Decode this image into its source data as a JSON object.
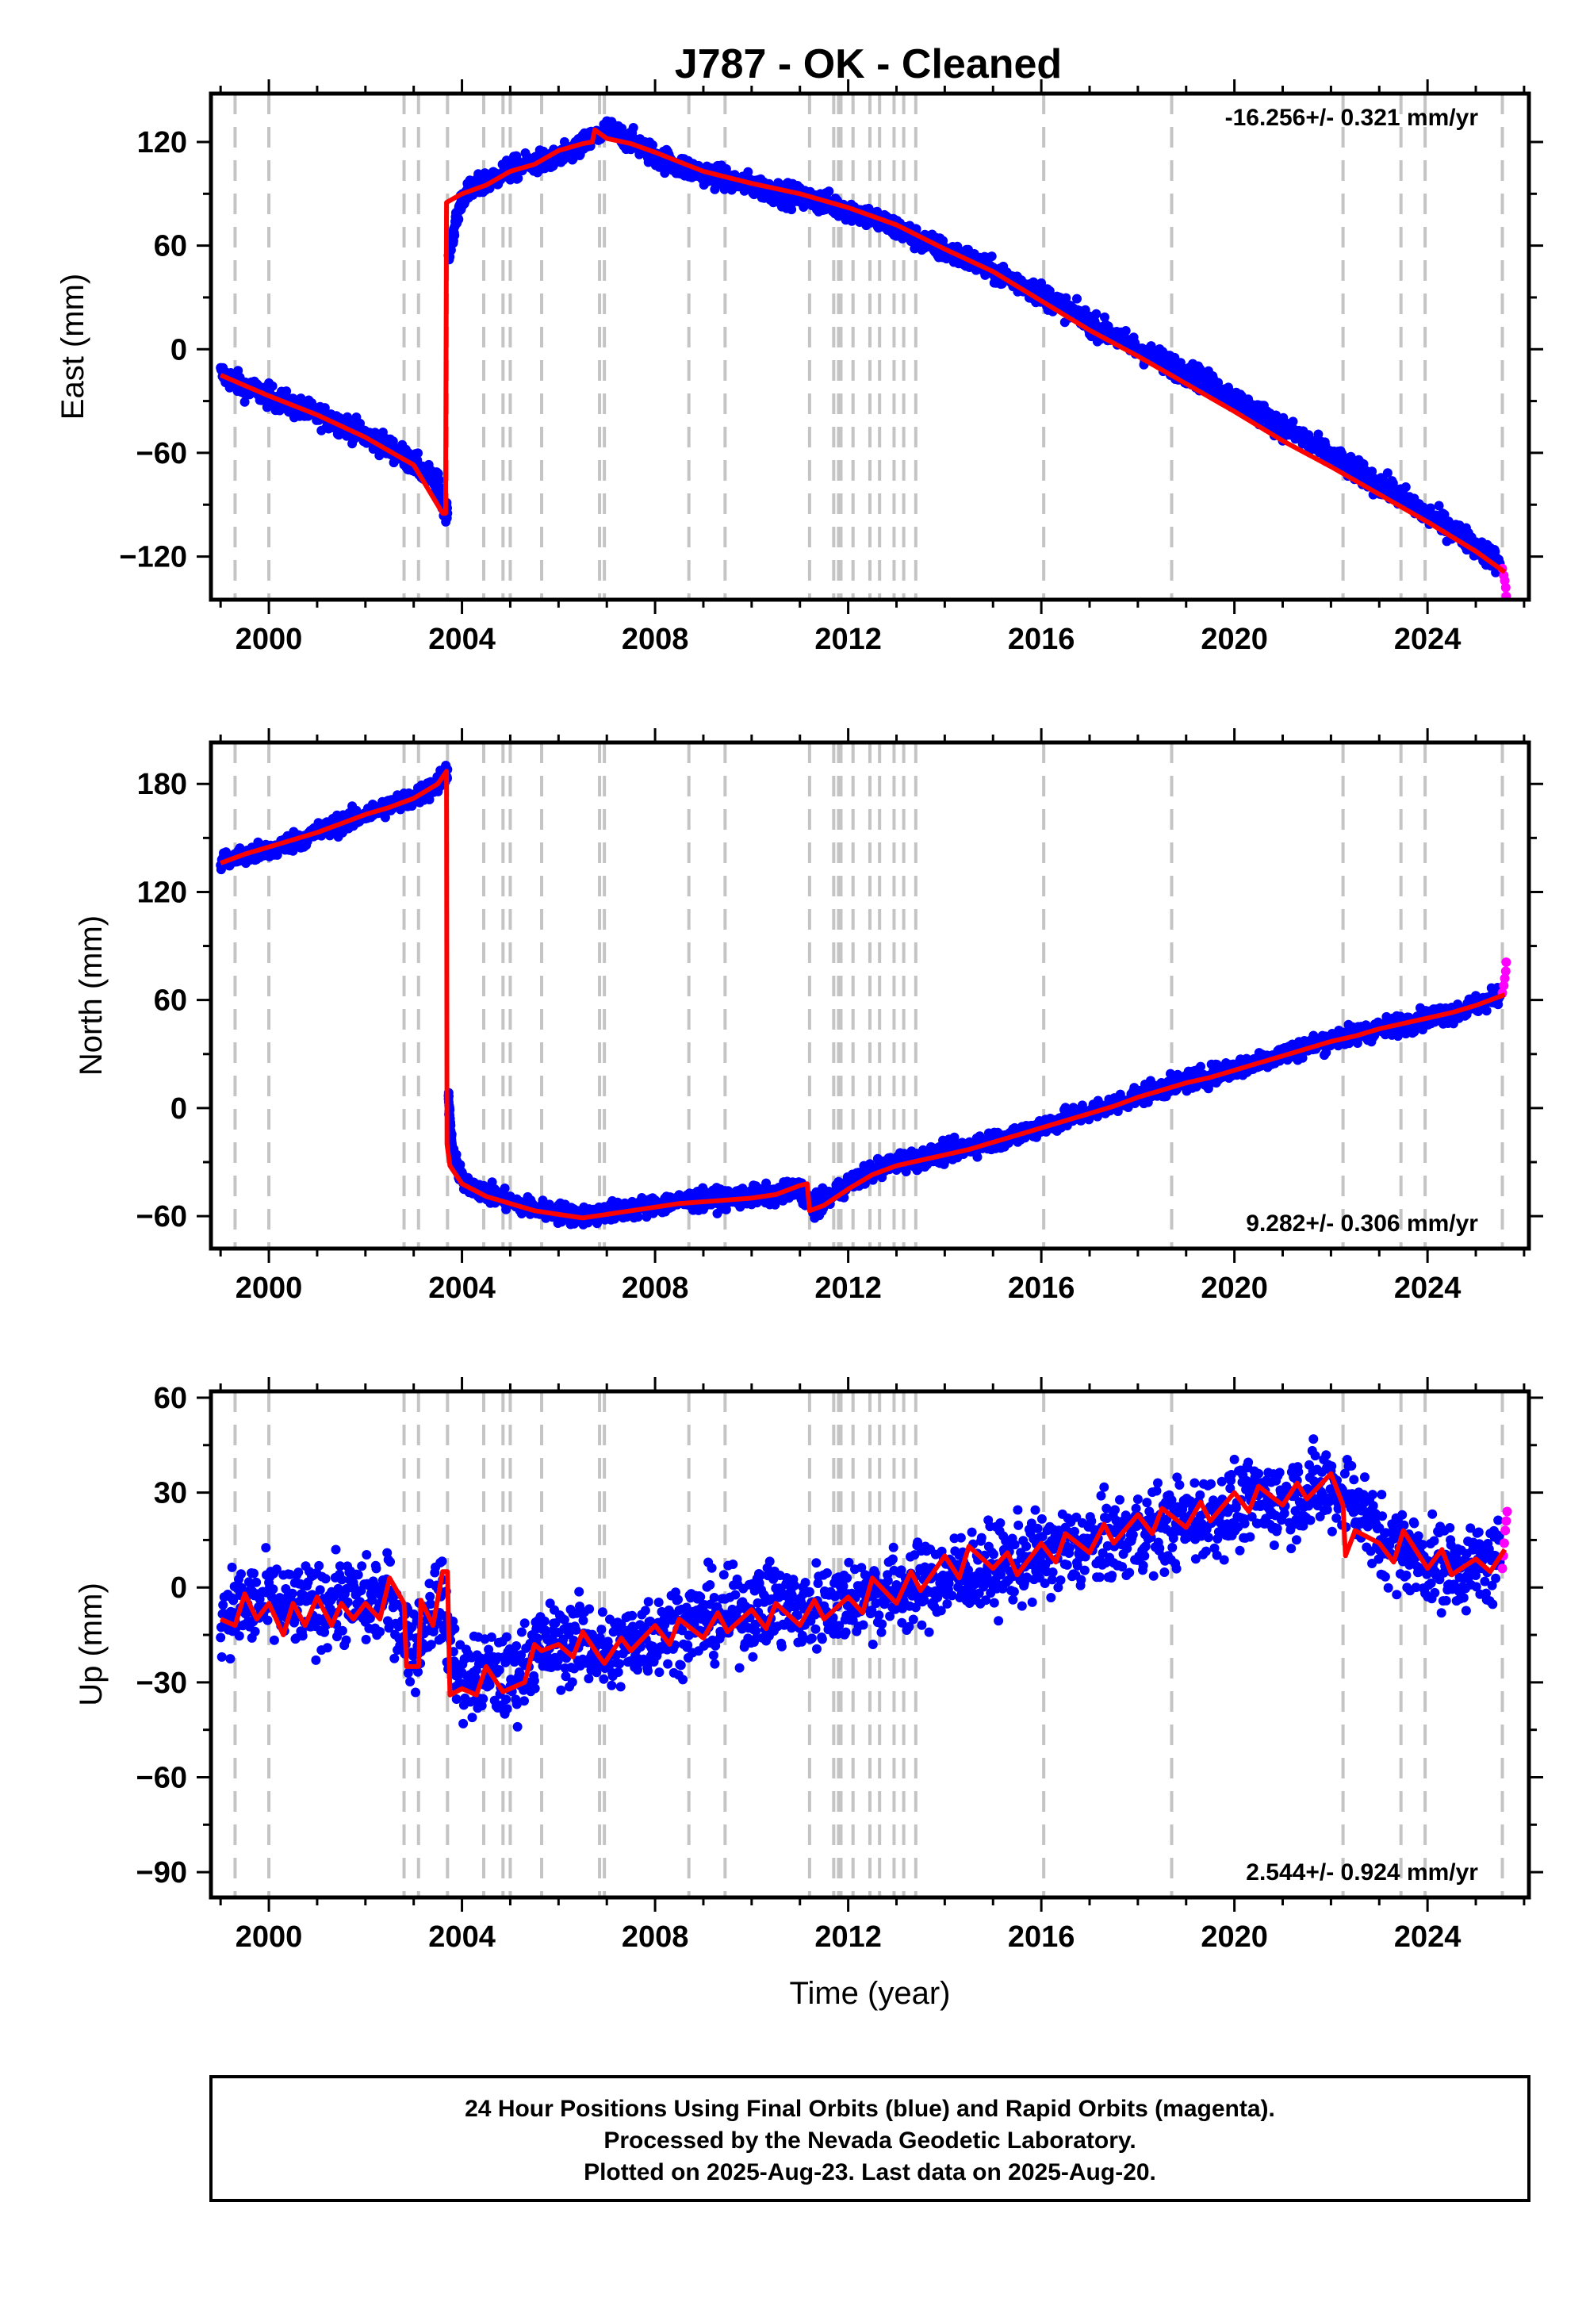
{
  "chart_data": [
    {
      "type": "scatter",
      "panel": "east",
      "title": "J787  - OK - Cleaned",
      "xlabel": "",
      "ylabel": "East (mm)",
      "xlim": [
        1998.8,
        2026.1
      ],
      "ylim": [
        -145,
        148
      ],
      "xticks": [
        2000,
        2004,
        2008,
        2012,
        2016,
        2020,
        2024
      ],
      "yticks": [
        -120,
        -60,
        0,
        60,
        120
      ],
      "rate_text": "-16.256+/- 0.321 mm/yr",
      "rate_position": "top-right",
      "series": [
        {
          "name": "Final Orbits",
          "color": "#0000ff",
          "x": [
            1999.0,
            1999.5,
            2000.0,
            2000.5,
            2001.0,
            2001.5,
            2002.0,
            2002.5,
            2003.0,
            2003.5,
            2003.7,
            2003.72,
            2004.0,
            2004.5,
            2005.0,
            2005.5,
            2006.0,
            2006.5,
            2007.0,
            2007.5,
            2008.0,
            2008.5,
            2009.0,
            2009.5,
            2010.0,
            2010.5,
            2011.0,
            2011.5,
            2012.0,
            2012.5,
            2013.0,
            2013.5,
            2014.0,
            2014.5,
            2015.0,
            2015.5,
            2016.0,
            2016.5,
            2017.0,
            2017.5,
            2018.0,
            2018.5,
            2019.0,
            2019.5,
            2020.0,
            2020.5,
            2021.0,
            2021.5,
            2022.0,
            2022.5,
            2023.0,
            2023.5,
            2024.0,
            2024.5,
            2025.0,
            2025.5
          ],
          "y": [
            -14,
            -22,
            -27,
            -33,
            -38,
            -43,
            -50,
            -57,
            -66,
            -78,
            -95,
            55,
            88,
            97,
            104,
            108,
            110,
            118,
            127,
            121,
            112,
            106,
            102,
            98,
            95,
            91,
            88,
            85,
            81,
            76,
            70,
            63,
            57,
            52,
            45,
            39,
            32,
            24,
            15,
            8,
            0,
            -7,
            -13,
            -20,
            -29,
            -37,
            -45,
            -53,
            -62,
            -70,
            -78,
            -86,
            -96,
            -104,
            -114,
            -124
          ],
          "jitter": 6
        },
        {
          "name": "Rapid Orbits",
          "color": "#ff00ff",
          "x": [
            2025.55,
            2025.58,
            2025.6,
            2025.62,
            2025.63
          ],
          "y": [
            -127,
            -131,
            -134,
            -138,
            -143
          ],
          "jitter": 0
        },
        {
          "name": "Model",
          "color": "#ff0000",
          "x": [
            1999.0,
            2000.0,
            2001.0,
            2002.0,
            2003.0,
            2003.6,
            2003.66,
            2003.68,
            2004.0,
            2004.5,
            2005.0,
            2005.5,
            2006.0,
            2006.5,
            2006.7,
            2006.75,
            2007.0,
            2007.5,
            2008.0,
            2009.0,
            2010.0,
            2011.0,
            2012.0,
            2013.0,
            2014.0,
            2015.0,
            2016.0,
            2017.0,
            2018.0,
            2019.0,
            2020.0,
            2021.0,
            2022.0,
            2023.0,
            2024.0,
            2025.0,
            2025.6
          ],
          "y": [
            -15,
            -27,
            -38,
            -51,
            -67,
            -95,
            -95,
            85,
            90,
            95,
            103,
            107,
            115,
            119,
            120,
            127,
            122,
            119,
            114,
            103,
            96,
            90,
            82,
            72,
            58,
            45,
            28,
            11,
            -4,
            -20,
            -36,
            -53,
            -68,
            -84,
            -100,
            -117,
            -129
          ]
        }
      ],
      "steps": [
        1999.3,
        2000.0,
        2002.8,
        2003.1,
        2003.7,
        2004.45,
        2004.85,
        2005.0,
        2005.65,
        2006.85,
        2006.95,
        2008.7,
        2009.45,
        2011.2,
        2011.7,
        2011.8,
        2011.85,
        2012.1,
        2012.45,
        2012.65,
        2012.95,
        2013.15,
        2013.4,
        2016.05,
        2018.7,
        2022.25,
        2023.45,
        2023.95,
        2025.55
      ]
    },
    {
      "type": "scatter",
      "panel": "north",
      "title": "",
      "xlabel": "",
      "ylabel": "North (mm)",
      "xlim": [
        1998.8,
        2026.1
      ],
      "ylim": [
        -78,
        203
      ],
      "xticks": [
        2000,
        2004,
        2008,
        2012,
        2016,
        2020,
        2024
      ],
      "yticks": [
        -60,
        0,
        60,
        120,
        180
      ],
      "rate_text": "9.282+/- 0.306 mm/yr",
      "rate_position": "bottom-right",
      "series": [
        {
          "name": "Final Orbits",
          "color": "#0000ff",
          "x": [
            1999.0,
            1999.5,
            2000.0,
            2000.5,
            2001.0,
            2001.5,
            2002.0,
            2002.5,
            2003.0,
            2003.5,
            2003.7,
            2003.72,
            2003.8,
            2004.0,
            2004.5,
            2005.0,
            2005.5,
            2006.0,
            2006.5,
            2007.0,
            2007.5,
            2008.0,
            2008.5,
            2009.0,
            2009.5,
            2010.0,
            2010.5,
            2011.0,
            2011.3,
            2011.5,
            2012.0,
            2012.5,
            2013.0,
            2013.5,
            2014.0,
            2014.5,
            2015.0,
            2015.5,
            2016.0,
            2016.5,
            2017.0,
            2017.5,
            2018.0,
            2018.5,
            2019.0,
            2019.5,
            2020.0,
            2020.5,
            2021.0,
            2021.5,
            2022.0,
            2022.5,
            2023.0,
            2023.5,
            2024.0,
            2024.5,
            2025.0,
            2025.5
          ],
          "y": [
            137,
            140,
            143,
            148,
            153,
            158,
            163,
            168,
            172,
            180,
            188,
            5,
            -25,
            -40,
            -47,
            -52,
            -56,
            -58,
            -60,
            -58,
            -56,
            -54,
            -52,
            -51,
            -50,
            -49,
            -48,
            -45,
            -55,
            -52,
            -42,
            -35,
            -30,
            -28,
            -25,
            -21,
            -18,
            -15,
            -10,
            -6,
            -2,
            2,
            7,
            11,
            15,
            18,
            22,
            26,
            30,
            34,
            38,
            41,
            44,
            47,
            50,
            53,
            57,
            62
          ],
          "jitter": 5
        },
        {
          "name": "Rapid Orbits",
          "color": "#ff00ff",
          "x": [
            2025.55,
            2025.58,
            2025.6,
            2025.62,
            2025.63
          ],
          "y": [
            64,
            68,
            72,
            76,
            81
          ],
          "jitter": 0
        },
        {
          "name": "Model",
          "color": "#ff0000",
          "x": [
            1999.0,
            1999.5,
            2000.0,
            2000.5,
            2001.0,
            2001.5,
            2002.0,
            2002.5,
            2003.0,
            2003.5,
            2003.68,
            2003.69,
            2003.75,
            2004.0,
            2004.5,
            2005.0,
            2005.5,
            2006.0,
            2006.5,
            2007.0,
            2007.5,
            2008.0,
            2008.5,
            2009.0,
            2009.5,
            2010.0,
            2010.5,
            2011.0,
            2011.15,
            2011.2,
            2011.5,
            2012.0,
            2012.5,
            2013.0,
            2013.5,
            2014.0,
            2014.5,
            2015.0,
            2015.5,
            2016.0,
            2016.5,
            2017.0,
            2017.5,
            2018.0,
            2018.5,
            2019.0,
            2019.5,
            2020.0,
            2020.5,
            2021.0,
            2021.5,
            2022.0,
            2022.5,
            2023.0,
            2023.5,
            2024.0,
            2024.5,
            2025.0,
            2025.6
          ],
          "y": [
            136,
            141,
            145,
            149,
            153,
            158,
            163,
            167,
            172,
            180,
            187,
            -20,
            -32,
            -42,
            -49,
            -53,
            -57,
            -59,
            -61,
            -59,
            -57,
            -55,
            -53,
            -52,
            -51,
            -50,
            -48,
            -43,
            -42,
            -57,
            -54,
            -45,
            -37,
            -32,
            -29,
            -26,
            -23,
            -19,
            -15,
            -11,
            -7,
            -3,
            1,
            6,
            10,
            14,
            17,
            21,
            25,
            29,
            33,
            37,
            40,
            44,
            47,
            50,
            53,
            57,
            63
          ]
        }
      ],
      "steps": [
        1999.3,
        2000.0,
        2002.8,
        2003.1,
        2003.7,
        2004.45,
        2004.85,
        2005.0,
        2005.65,
        2006.85,
        2006.95,
        2008.7,
        2009.45,
        2011.2,
        2011.7,
        2011.8,
        2011.85,
        2012.1,
        2012.45,
        2012.65,
        2012.95,
        2013.15,
        2013.4,
        2016.05,
        2018.7,
        2022.25,
        2023.45,
        2023.95,
        2025.55
      ]
    },
    {
      "type": "scatter",
      "panel": "up",
      "title": "",
      "xlabel": "Time (year)",
      "ylabel": "Up (mm)",
      "xlim": [
        1998.8,
        2026.1
      ],
      "ylim": [
        -98,
        62
      ],
      "xticks": [
        2000,
        2004,
        2008,
        2012,
        2016,
        2020,
        2024
      ],
      "yticks": [
        -90,
        -60,
        -30,
        0,
        30,
        60
      ],
      "rate_text": "2.544+/- 0.924 mm/yr",
      "rate_position": "bottom-right",
      "series": [
        {
          "name": "Final Orbits",
          "color": "#0000ff",
          "x": [
            1999.0,
            1999.5,
            2000.0,
            2000.5,
            2001.0,
            2001.5,
            2002.0,
            2002.5,
            2003.0,
            2003.5,
            2004.0,
            2004.5,
            2005.0,
            2005.5,
            2006.0,
            2006.5,
            2007.0,
            2007.5,
            2008.0,
            2008.5,
            2009.0,
            2009.5,
            2010.0,
            2010.5,
            2011.0,
            2011.5,
            2012.0,
            2012.5,
            2013.0,
            2013.5,
            2014.0,
            2014.5,
            2015.0,
            2015.5,
            2016.0,
            2016.5,
            2017.0,
            2017.5,
            2018.0,
            2018.5,
            2019.0,
            2019.5,
            2020.0,
            2020.5,
            2021.0,
            2021.5,
            2022.0,
            2022.5,
            2023.0,
            2023.5,
            2024.0,
            2024.5,
            2025.0,
            2025.5
          ],
          "y": [
            -8,
            -6,
            -5,
            -7,
            -6,
            -4,
            -5,
            -3,
            -20,
            -2,
            -30,
            -27,
            -30,
            -20,
            -18,
            -16,
            -22,
            -17,
            -14,
            -12,
            -10,
            -9,
            -7,
            -5,
            -8,
            -5,
            -4,
            -2,
            -1,
            0,
            3,
            5,
            6,
            8,
            10,
            12,
            13,
            15,
            17,
            19,
            21,
            23,
            25,
            27,
            28,
            30,
            32,
            28,
            15,
            12,
            8,
            6,
            7,
            8
          ],
          "jitter": 12
        },
        {
          "name": "Rapid Orbits",
          "color": "#ff00ff",
          "x": [
            2025.55,
            2025.57,
            2025.59,
            2025.61,
            2025.63,
            2025.65
          ],
          "y": [
            6,
            10,
            14,
            18,
            21,
            24
          ],
          "jitter": 0
        },
        {
          "name": "Model",
          "color": "#ff0000",
          "x": [
            1999.0,
            1999.3,
            1999.5,
            1999.75,
            2000.0,
            2000.3,
            2000.5,
            2000.75,
            2001.0,
            2001.3,
            2001.5,
            2001.75,
            2002.0,
            2002.3,
            2002.5,
            2002.8,
            2002.85,
            2003.1,
            2003.15,
            2003.4,
            2003.6,
            2003.7,
            2003.75,
            2004.0,
            2004.3,
            2004.5,
            2004.85,
            2005.0,
            2005.3,
            2005.5,
            2005.65,
            2006.0,
            2006.3,
            2006.5,
            2006.85,
            2006.95,
            2007.3,
            2007.5,
            2008.0,
            2008.3,
            2008.5,
            2009.0,
            2009.3,
            2009.5,
            2010.0,
            2010.3,
            2010.5,
            2011.0,
            2011.3,
            2011.5,
            2012.0,
            2012.3,
            2012.5,
            2013.0,
            2013.3,
            2013.5,
            2014.0,
            2014.3,
            2014.5,
            2015.0,
            2015.3,
            2015.5,
            2016.0,
            2016.3,
            2016.5,
            2017.0,
            2017.3,
            2017.5,
            2018.0,
            2018.3,
            2018.5,
            2019.0,
            2019.3,
            2019.5,
            2020.0,
            2020.3,
            2020.5,
            2021.0,
            2021.3,
            2021.5,
            2022.0,
            2022.25,
            2022.3,
            2022.5,
            2023.0,
            2023.3,
            2023.5,
            2024.0,
            2024.3,
            2024.5,
            2025.0,
            2025.3,
            2025.6
          ],
          "y": [
            -10,
            -12,
            -2,
            -10,
            -5,
            -15,
            -5,
            -12,
            -3,
            -12,
            -5,
            -10,
            -5,
            -10,
            3,
            -5,
            -25,
            -25,
            -4,
            -12,
            5,
            5,
            -34,
            -32,
            -34,
            -25,
            -33,
            -32,
            -30,
            -18,
            -20,
            -18,
            -22,
            -14,
            -22,
            -24,
            -16,
            -20,
            -12,
            -18,
            -10,
            -16,
            -8,
            -14,
            -7,
            -13,
            -5,
            -12,
            -4,
            -10,
            -3,
            -8,
            3,
            -5,
            5,
            -1,
            10,
            3,
            13,
            6,
            11,
            4,
            14,
            8,
            17,
            11,
            20,
            14,
            23,
            17,
            25,
            19,
            27,
            21,
            30,
            24,
            32,
            26,
            33,
            28,
            36,
            26,
            10,
            18,
            14,
            8,
            18,
            6,
            12,
            4,
            9,
            5,
            12
          ]
        }
      ],
      "steps": [
        1999.3,
        2000.0,
        2002.8,
        2003.1,
        2003.7,
        2004.45,
        2004.85,
        2005.0,
        2005.65,
        2006.85,
        2006.95,
        2008.7,
        2009.45,
        2011.2,
        2011.7,
        2011.8,
        2011.85,
        2012.1,
        2012.45,
        2012.65,
        2012.95,
        2013.15,
        2013.4,
        2016.05,
        2018.7,
        2022.25,
        2023.45,
        2023.95,
        2025.55
      ]
    }
  ],
  "footer": {
    "line1": "24 Hour Positions Using Final Orbits (blue) and Rapid Orbits (magenta).",
    "line2": "Processed by the Nevada Geodetic Laboratory.",
    "line3": "Plotted on 2025-Aug-23. Last data on 2025-Aug-20."
  }
}
